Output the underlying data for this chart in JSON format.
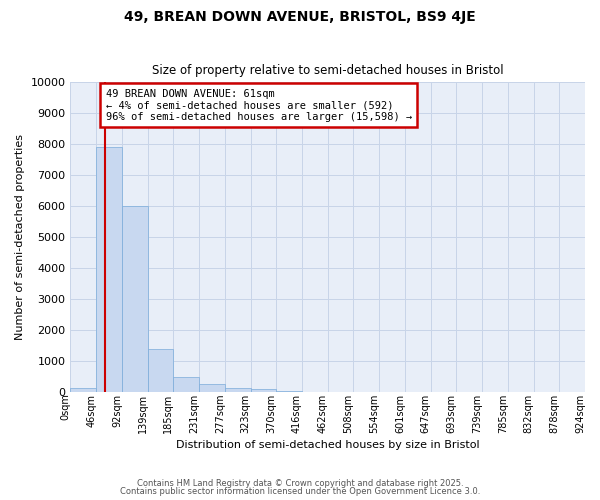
{
  "title": "49, BREAN DOWN AVENUE, BRISTOL, BS9 4JE",
  "subtitle": "Size of property relative to semi-detached houses in Bristol",
  "xlabel": "Distribution of semi-detached houses by size in Bristol",
  "ylabel": "Number of semi-detached properties",
  "bin_labels": [
    "0sqm",
    "46sqm",
    "92sqm",
    "139sqm",
    "185sqm",
    "231sqm",
    "277sqm",
    "323sqm",
    "370sqm",
    "416sqm",
    "462sqm",
    "508sqm",
    "554sqm",
    "601sqm",
    "647sqm",
    "693sqm",
    "739sqm",
    "785sqm",
    "832sqm",
    "878sqm",
    "924sqm"
  ],
  "bar_values": [
    150,
    7900,
    6000,
    1400,
    500,
    250,
    150,
    100,
    50,
    20,
    10,
    5,
    3,
    2,
    1,
    1,
    1,
    1,
    1,
    1
  ],
  "bar_color": "#c8d8f0",
  "bar_edge_color": "#7aabda",
  "grid_color": "#c8d4e8",
  "background_color": "#e8eef8",
  "property_size": 61,
  "property_line_color": "#cc0000",
  "annotation_text": "49 BREAN DOWN AVENUE: 61sqm\n← 4% of semi-detached houses are smaller (592)\n96% of semi-detached houses are larger (15,598) →",
  "annotation_box_color": "#cc0000",
  "ylim": [
    0,
    10000
  ],
  "yticks": [
    0,
    1000,
    2000,
    3000,
    4000,
    5000,
    6000,
    7000,
    8000,
    9000,
    10000
  ],
  "bin_width": 46,
  "footer_line1": "Contains HM Land Registry data © Crown copyright and database right 2025.",
  "footer_line2": "Contains public sector information licensed under the Open Government Licence 3.0."
}
